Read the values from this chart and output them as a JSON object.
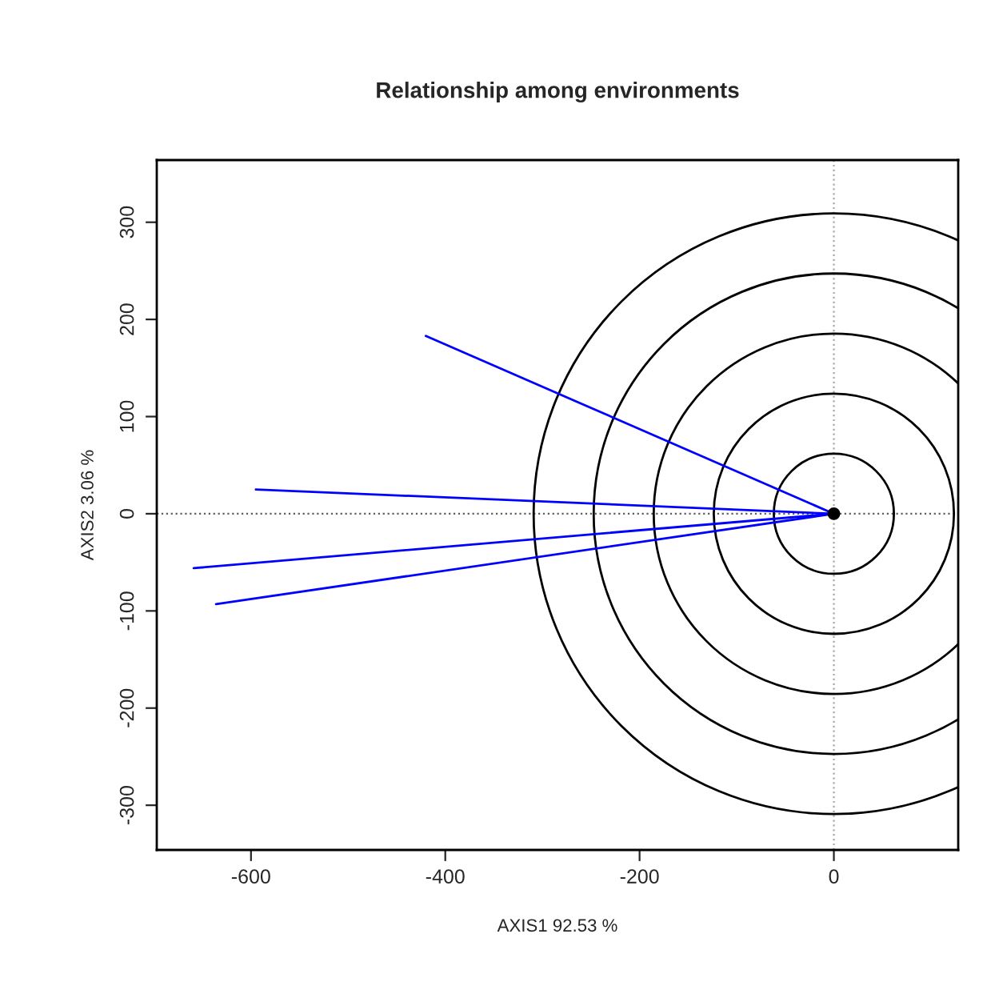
{
  "chart_data": {
    "type": "line",
    "title": "Relationship among environments",
    "xlabel": "AXIS1 92.53 %",
    "ylabel": "AXIS2 3.06 %",
    "series": [
      {
        "x": [
          0,
          -420
        ],
        "values": [
          0,
          183
        ],
        "color": "#0000ff"
      },
      {
        "x": [
          0,
          -595
        ],
        "values": [
          0,
          25
        ],
        "color": "#0000ff"
      },
      {
        "x": [
          0,
          -659
        ],
        "values": [
          0,
          -56
        ],
        "color": "#0000ff"
      },
      {
        "x": [
          0,
          -636
        ],
        "values": [
          0,
          -93
        ],
        "color": "#0000ff"
      },
      {
        "type": "scatter",
        "x": [
          0
        ],
        "values": [
          0
        ],
        "color": "#000000",
        "marker": "circle"
      }
    ],
    "xlim": [
      -697,
      128
    ],
    "ylim": [
      -346,
      364
    ],
    "xticks": [
      -600,
      -400,
      -200,
      0
    ],
    "yticks": [
      -300,
      -200,
      -100,
      0,
      100,
      200,
      300
    ],
    "ref_lines": [
      {
        "axis": "x",
        "value": 0,
        "color": "#a8a8a8",
        "line_style": "dotted"
      },
      {
        "axis": "y",
        "value": 0,
        "color": "#606060",
        "line_style": "dotted"
      }
    ],
    "grid": false
  }
}
